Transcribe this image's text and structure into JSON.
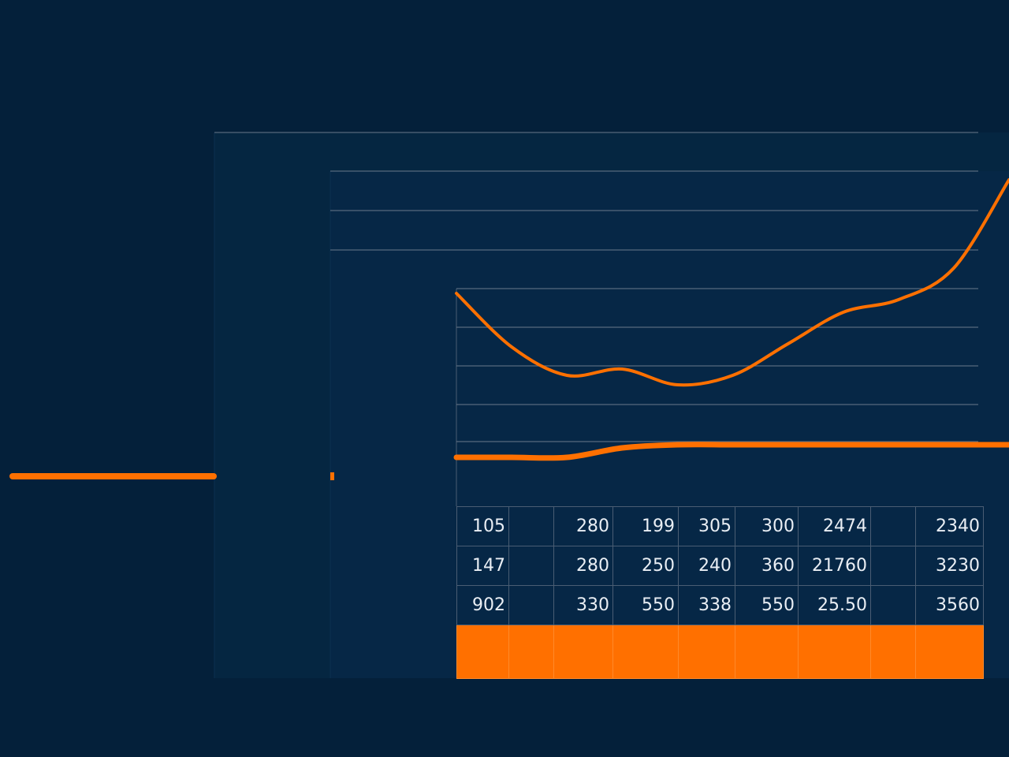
{
  "chart_data": {
    "type": "line",
    "title": "",
    "xlabel": "",
    "ylabel": "",
    "grid": true,
    "legend": "none",
    "x": [
      0,
      1,
      2,
      3,
      4,
      5,
      6,
      7,
      8,
      9,
      10
    ],
    "ylim": [
      0,
      100
    ],
    "series": [
      {
        "values": [
          62,
          45,
          36,
          38,
          33,
          36,
          46,
          56,
          60,
          70,
          98
        ]
      },
      {
        "values": [
          10,
          10,
          10,
          13,
          14,
          14,
          14,
          14,
          14,
          14,
          14
        ]
      }
    ],
    "left_line_level": 4
  },
  "table": {
    "rows": [
      [
        "105",
        "",
        "280",
        "199",
        "305",
        "300",
        "2474",
        "",
        "2340"
      ],
      [
        "147",
        "",
        "280",
        "250",
        "240",
        "360",
        "21760",
        "",
        "3230"
      ],
      [
        "902",
        "",
        "330",
        "550",
        "338",
        "550",
        "25.50",
        "",
        "3560"
      ]
    ]
  },
  "colors": {
    "background": "#04203a",
    "accent": "#ff7000",
    "grid": "#6b7a8c"
  }
}
